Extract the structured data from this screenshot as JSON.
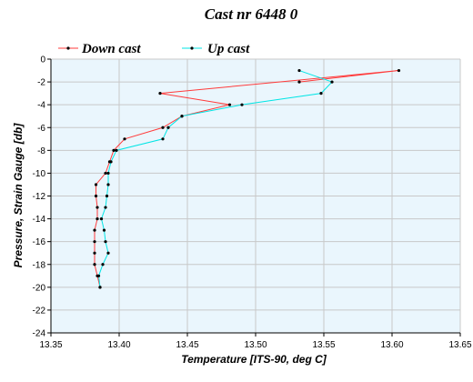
{
  "chart_data": {
    "type": "line",
    "title": "Cast nr 6448 0",
    "xlabel": "Temperature [ITS-90, deg C]",
    "ylabel": "Pressure, Strain Gauge [db]",
    "xlim": [
      13.35,
      13.65
    ],
    "ylim": [
      -24,
      0
    ],
    "x_ticks": [
      "13.35",
      "13.40",
      "13.45",
      "13.50",
      "13.55",
      "13.60",
      "13.65"
    ],
    "y_ticks": [
      "0",
      "-2",
      "-4",
      "-6",
      "-8",
      "-10",
      "-12",
      "-14",
      "-16",
      "-18",
      "-20",
      "-22",
      "-24"
    ],
    "grid": true,
    "plot_background": "#eaf6fd",
    "grid_color": "#c8c8c8",
    "legend_position": "top-left, above plot",
    "series": [
      {
        "name": "Down cast",
        "color": "#ff3b3b",
        "points": [
          {
            "x": 13.532,
            "y": -2
          },
          {
            "x": 13.605,
            "y": -1
          },
          {
            "x": 13.43,
            "y": -3
          },
          {
            "x": 13.481,
            "y": -4
          },
          {
            "x": 13.446,
            "y": -5
          },
          {
            "x": 13.432,
            "y": -6
          },
          {
            "x": 13.404,
            "y": -7
          },
          {
            "x": 13.396,
            "y": -8
          },
          {
            "x": 13.393,
            "y": -9
          },
          {
            "x": 13.39,
            "y": -10
          },
          {
            "x": 13.383,
            "y": -11
          },
          {
            "x": 13.383,
            "y": -12
          },
          {
            "x": 13.384,
            "y": -13
          },
          {
            "x": 13.384,
            "y": -14
          },
          {
            "x": 13.382,
            "y": -15
          },
          {
            "x": 13.382,
            "y": -16
          },
          {
            "x": 13.382,
            "y": -17
          },
          {
            "x": 13.382,
            "y": -18
          },
          {
            "x": 13.384,
            "y": -19
          },
          {
            "x": 13.386,
            "y": -20
          }
        ]
      },
      {
        "name": "Up cast",
        "color": "#00e5e5",
        "points": [
          {
            "x": 13.386,
            "y": -20
          },
          {
            "x": 13.385,
            "y": -19
          },
          {
            "x": 13.388,
            "y": -18
          },
          {
            "x": 13.392,
            "y": -17
          },
          {
            "x": 13.39,
            "y": -16
          },
          {
            "x": 13.389,
            "y": -15
          },
          {
            "x": 13.387,
            "y": -14
          },
          {
            "x": 13.39,
            "y": -13
          },
          {
            "x": 13.391,
            "y": -12
          },
          {
            "x": 13.392,
            "y": -11
          },
          {
            "x": 13.392,
            "y": -10
          },
          {
            "x": 13.394,
            "y": -9
          },
          {
            "x": 13.398,
            "y": -8
          },
          {
            "x": 13.432,
            "y": -7
          },
          {
            "x": 13.436,
            "y": -6
          },
          {
            "x": 13.446,
            "y": -5
          },
          {
            "x": 13.49,
            "y": -4
          },
          {
            "x": 13.548,
            "y": -3
          },
          {
            "x": 13.556,
            "y": -2
          },
          {
            "x": 13.532,
            "y": -1
          }
        ]
      }
    ]
  }
}
